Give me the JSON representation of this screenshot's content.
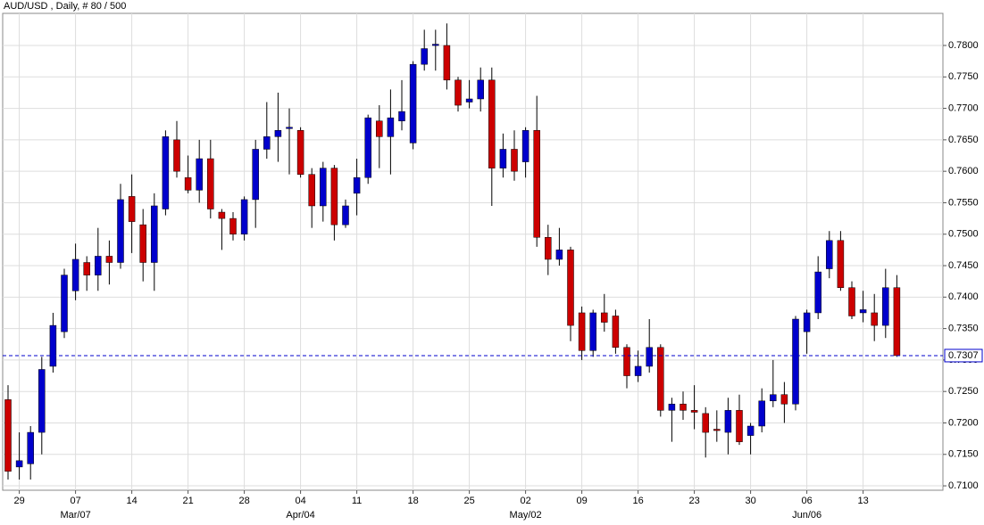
{
  "chart_data": {
    "type": "candlestick",
    "title": "AUD/USD , Daily, # 80 / 500",
    "categories": [
      null,
      "29",
      null,
      null,
      null,
      null,
      "07",
      null,
      null,
      null,
      null,
      "14",
      null,
      null,
      null,
      null,
      "21",
      null,
      null,
      null,
      null,
      "28",
      null,
      null,
      null,
      null,
      "04",
      null,
      null,
      null,
      null,
      "11",
      null,
      null,
      null,
      null,
      "18",
      null,
      null,
      null,
      null,
      "25",
      null,
      null,
      null,
      null,
      "02",
      null,
      null,
      null,
      null,
      "09",
      null,
      null,
      null,
      null,
      "16",
      null,
      null,
      null,
      null,
      "23",
      null,
      null,
      null,
      null,
      "30",
      null,
      null,
      null,
      null,
      "06",
      null,
      null,
      null,
      null,
      "13",
      null,
      null,
      null
    ],
    "month_labels": [
      null,
      null,
      null,
      null,
      null,
      null,
      "Mar/07",
      null,
      null,
      null,
      null,
      null,
      null,
      null,
      null,
      null,
      null,
      null,
      null,
      null,
      null,
      null,
      null,
      null,
      null,
      null,
      "Apr/04",
      null,
      null,
      null,
      null,
      null,
      null,
      null,
      null,
      null,
      null,
      null,
      null,
      null,
      null,
      null,
      null,
      null,
      null,
      null,
      "May/02",
      null,
      null,
      null,
      null,
      null,
      null,
      null,
      null,
      null,
      null,
      null,
      null,
      null,
      null,
      null,
      null,
      null,
      null,
      null,
      null,
      null,
      null,
      null,
      null,
      "Jun/06",
      null,
      null,
      null,
      null,
      null,
      null,
      null,
      null
    ],
    "open": [
      0.7237,
      0.713,
      0.7135,
      0.7185,
      0.729,
      0.7345,
      0.741,
      0.7455,
      0.7435,
      0.7465,
      0.7455,
      0.756,
      0.7515,
      0.7455,
      0.754,
      0.765,
      0.759,
      0.757,
      0.762,
      0.7535,
      0.7525,
      0.75,
      0.7555,
      0.7635,
      0.7655,
      0.767,
      0.7665,
      0.7595,
      0.7545,
      0.7605,
      0.7515,
      0.7565,
      0.759,
      0.768,
      0.7655,
      0.768,
      0.7645,
      0.777,
      0.78,
      0.78,
      0.7745,
      0.771,
      0.7715,
      0.7745,
      0.7605,
      0.7635,
      0.7615,
      0.7665,
      0.7495,
      0.746,
      0.7475,
      0.7375,
      0.7315,
      0.7375,
      0.737,
      0.732,
      0.7275,
      0.729,
      0.732,
      0.722,
      0.723,
      0.722,
      0.7215,
      0.719,
      0.7185,
      0.722,
      0.718,
      0.7195,
      0.7235,
      0.7245,
      0.723,
      0.7345,
      0.7375,
      0.7445,
      0.749,
      0.7415,
      0.7375,
      0.7375,
      0.7355,
      0.7415
    ],
    "high": [
      0.726,
      0.7185,
      0.7195,
      0.7305,
      0.7375,
      0.7445,
      0.7485,
      0.7465,
      0.751,
      0.749,
      0.758,
      0.7595,
      0.754,
      0.7565,
      0.7665,
      0.768,
      0.7625,
      0.765,
      0.765,
      0.754,
      0.7535,
      0.756,
      0.765,
      0.771,
      0.7725,
      0.77,
      0.767,
      0.7605,
      0.7615,
      0.761,
      0.7555,
      0.762,
      0.769,
      0.7705,
      0.773,
      0.7745,
      0.7775,
      0.7825,
      0.7825,
      0.7835,
      0.775,
      0.7745,
      0.7765,
      0.7765,
      0.766,
      0.7665,
      0.767,
      0.772,
      0.7515,
      0.751,
      0.748,
      0.7385,
      0.738,
      0.7405,
      0.738,
      0.7325,
      0.7315,
      0.7365,
      0.7325,
      0.724,
      0.725,
      0.726,
      0.7225,
      0.722,
      0.724,
      0.7245,
      0.72,
      0.7255,
      0.73,
      0.7265,
      0.737,
      0.738,
      0.7465,
      0.7505,
      0.7505,
      0.7425,
      0.741,
      0.7405,
      0.7445,
      0.7435
    ],
    "low": [
      0.711,
      0.711,
      0.711,
      0.715,
      0.728,
      0.7335,
      0.7395,
      0.741,
      0.741,
      0.742,
      0.7445,
      0.747,
      0.7425,
      0.741,
      0.753,
      0.759,
      0.7565,
      0.755,
      0.7525,
      0.7475,
      0.749,
      0.749,
      0.751,
      0.762,
      0.7615,
      0.7595,
      0.759,
      0.751,
      0.752,
      0.749,
      0.751,
      0.753,
      0.758,
      0.7605,
      0.7595,
      0.7665,
      0.7635,
      0.776,
      0.776,
      0.773,
      0.7695,
      0.77,
      0.7695,
      0.7545,
      0.759,
      0.7585,
      0.759,
      0.748,
      0.7435,
      0.745,
      0.733,
      0.73,
      0.7305,
      0.7345,
      0.731,
      0.7255,
      0.7265,
      0.728,
      0.721,
      0.717,
      0.7205,
      0.719,
      0.7145,
      0.717,
      0.715,
      0.7165,
      0.715,
      0.7185,
      0.7225,
      0.72,
      0.722,
      0.731,
      0.7365,
      0.743,
      0.741,
      0.7365,
      0.736,
      0.733,
      0.7335,
      0.7305
    ],
    "close": [
      0.7123,
      0.714,
      0.7185,
      0.7285,
      0.7355,
      0.7435,
      0.746,
      0.7435,
      0.7465,
      0.7455,
      0.7555,
      0.752,
      0.7455,
      0.7545,
      0.7655,
      0.76,
      0.757,
      0.762,
      0.754,
      0.7525,
      0.75,
      0.7555,
      0.7635,
      0.7655,
      0.7665,
      0.767,
      0.7595,
      0.7545,
      0.7605,
      0.7515,
      0.7545,
      0.759,
      0.7685,
      0.7655,
      0.7685,
      0.7695,
      0.777,
      0.7795,
      0.7802,
      0.7745,
      0.7705,
      0.7715,
      0.7745,
      0.7605,
      0.7635,
      0.76,
      0.7665,
      0.7495,
      0.746,
      0.7475,
      0.7355,
      0.7315,
      0.7375,
      0.736,
      0.732,
      0.7275,
      0.729,
      0.732,
      0.722,
      0.723,
      0.722,
      0.7217,
      0.7185,
      0.7188,
      0.722,
      0.717,
      0.7195,
      0.7235,
      0.7245,
      0.723,
      0.7365,
      0.7375,
      0.744,
      0.749,
      0.7415,
      0.737,
      0.738,
      0.7355,
      0.7415,
      0.7307
    ],
    "up_color": "#0000cc",
    "down_color": "#cc0000",
    "last_price": {
      "value": 0.7307,
      "label": "0.7307"
    },
    "last_price_color": "#0000cc",
    "ylim": [
      0.7093,
      0.7851
    ],
    "yticks": [
      {
        "value": 0.71,
        "label": "0.7100"
      },
      {
        "value": 0.715,
        "label": "0.7150"
      },
      {
        "value": 0.72,
        "label": "0.7200"
      },
      {
        "value": 0.725,
        "label": "0.7250"
      },
      {
        "value": 0.73,
        "label": "0.7300"
      },
      {
        "value": 0.735,
        "label": "0.7350"
      },
      {
        "value": 0.74,
        "label": "0.7400"
      },
      {
        "value": 0.745,
        "label": "0.7450"
      },
      {
        "value": 0.75,
        "label": "0.7500"
      },
      {
        "value": 0.755,
        "label": "0.7550"
      },
      {
        "value": 0.76,
        "label": "0.7600"
      },
      {
        "value": 0.765,
        "label": "0.7650"
      },
      {
        "value": 0.77,
        "label": "0.7700"
      },
      {
        "value": 0.775,
        "label": "0.7750"
      },
      {
        "value": 0.78,
        "label": "0.7800"
      }
    ],
    "grid": true
  }
}
